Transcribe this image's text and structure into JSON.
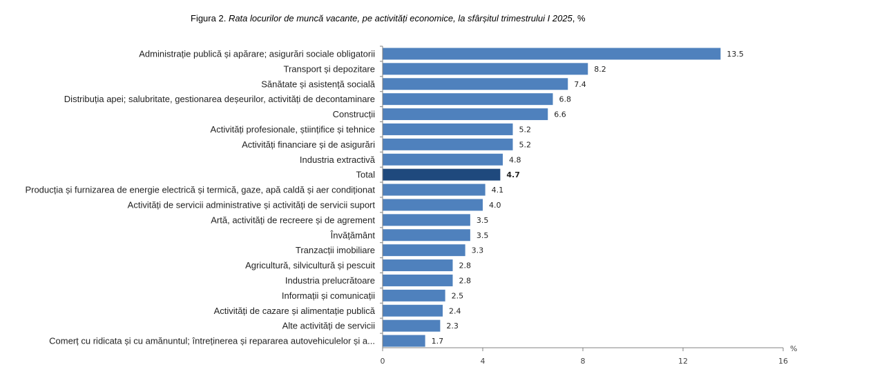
{
  "chart_data": {
    "type": "bar",
    "orientation": "horizontal",
    "title_prefix": "Figura 2.",
    "title": "Rata locurilor de muncă vacante,  pe activități economice, la sfârșitul trimestrului I 2025",
    "title_suffix": ", %",
    "xlabel": "%",
    "xlim": [
      0,
      16
    ],
    "xticks": [
      "0",
      "4",
      "8",
      "12",
      "16"
    ],
    "grid": false,
    "categories": [
      "Administrație publică și apărare; asigurări sociale obligatorii",
      "Transport și depozitare",
      "Sănătate și asistență socială",
      "Distribuția apei; salubritate, gestionarea deșeurilor, activități de decontaminare",
      "Construcții",
      "Activități profesionale, științifice și tehnice",
      "Activități financiare și de asigurări",
      "Industria extractivă",
      "Total",
      "Producția și furnizarea de energie electrică și termică, gaze, apă caldă și aer condiționat",
      "Activități de servicii administrative și activități de servicii suport",
      "Artă, activități de recreere și de agrement",
      "Învățământ",
      "Tranzacții imobiliare",
      "Agricultură, silvicultură și pescuit",
      "Industria prelucrătoare",
      "Informații și comunicații",
      "Activități de cazare și alimentație publică",
      "Alte activități de servicii",
      "Comerț cu ridicata și cu amănuntul; întreținerea și repararea autovehiculelor și a..."
    ],
    "values": [
      13.5,
      8.2,
      7.4,
      6.8,
      6.6,
      5.2,
      5.2,
      4.8,
      4.7,
      4.1,
      4.0,
      3.5,
      3.5,
      3.3,
      2.8,
      2.8,
      2.5,
      2.4,
      2.3,
      1.7
    ],
    "value_labels": [
      "13.5",
      "8.2",
      "7.4",
      "6.8",
      "6.6",
      "5.2",
      "5.2",
      "4.8",
      "4.7",
      "4.1",
      "4.0",
      "3.5",
      "3.5",
      "3.3",
      "2.8",
      "2.8",
      "2.5",
      "2.4",
      "2.3",
      "1.7"
    ],
    "highlight": "Total",
    "colors": {
      "bar": "#4f81bd",
      "highlight": "#1f497d",
      "axis": "#808080"
    }
  }
}
